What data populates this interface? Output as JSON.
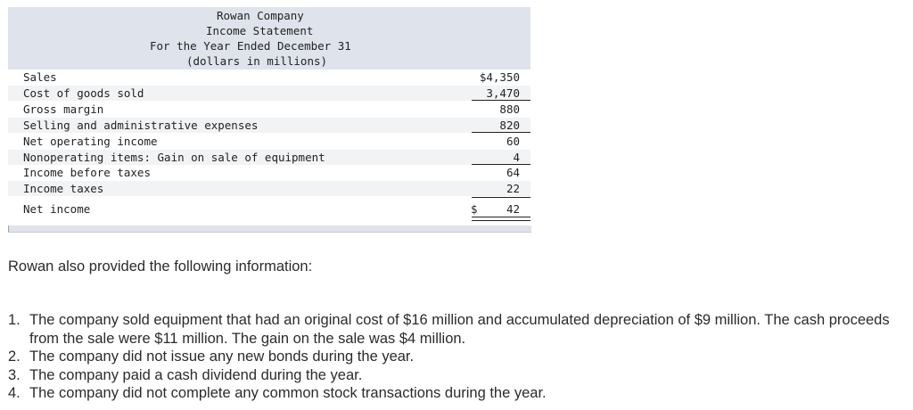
{
  "statement": {
    "company": "Rowan Company",
    "title": "Income Statement",
    "period": "For the Year Ended December 31",
    "units": "(dollars in millions)",
    "rows": [
      {
        "label": "Sales",
        "amount": "$4,350"
      },
      {
        "label": "Cost of goods sold",
        "amount": "3,470"
      },
      {
        "label": "Gross margin",
        "amount": "880"
      },
      {
        "label": "Selling and administrative expenses",
        "amount": "820"
      },
      {
        "label": "Net operating income",
        "amount": "60"
      },
      {
        "label": "Nonoperating items: Gain on sale of equipment",
        "amount": "4"
      },
      {
        "label": "Income before taxes",
        "amount": "64"
      },
      {
        "label": "Income taxes",
        "amount": "22"
      },
      {
        "label": "Net income",
        "currency": "$",
        "amount": "42"
      }
    ]
  },
  "intro": "Rowan also provided the following information:",
  "items": [
    {
      "num": "1.",
      "text": "The company sold equipment that had an original cost of $16 million and accumulated depreciation of $9 million. The cash proceeds from the sale were $11 million. The gain on the sale was $4 million."
    },
    {
      "num": "2.",
      "text": "The company did not issue any new bonds during the year."
    },
    {
      "num": "3.",
      "text": "The company paid a cash dividend during the year."
    },
    {
      "num": "4.",
      "text": "The company did not complete any common stock transactions during the year."
    }
  ]
}
